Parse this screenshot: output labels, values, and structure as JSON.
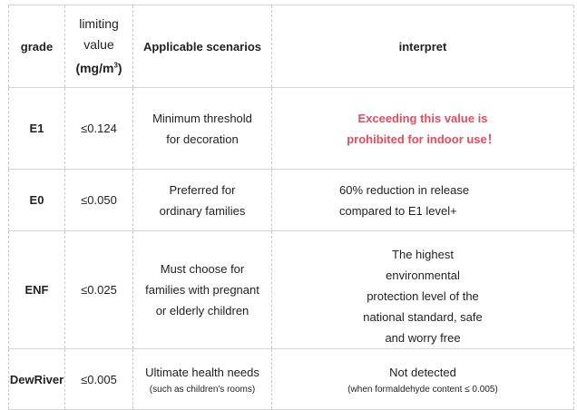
{
  "headers": {
    "grade": "grade",
    "limit_line1": "limiting",
    "limit_line2": "value",
    "limit_unit": "(mg/m",
    "limit_unit_sup": "3",
    "limit_unit_close": ")",
    "scenarios": "Applicable scenarios",
    "interpret": "interpret"
  },
  "rows": [
    {
      "grade": "E1",
      "limit": "≤0.124",
      "scenario": "Minimum threshold for decoration",
      "scenario_note": "",
      "interpret": "Exceeding this value is prohibited for indoor use！",
      "interpret_note": "",
      "interpret_color": "#e8495f"
    },
    {
      "grade": "E0",
      "limit": "≤0.050",
      "scenario": "Preferred for ordinary families",
      "scenario_note": "",
      "interpret": "60% reduction in release compared to E1 level+",
      "interpret_note": ""
    },
    {
      "grade": "ENF",
      "limit": "≤0.025",
      "scenario": "Must choose for families with pregnant or elderly children",
      "scenario_note": "",
      "interpret": "The highest environmental protection level of the national standard, safe and worry free",
      "interpret_note": ""
    },
    {
      "grade": "DewRiver",
      "limit": "≤0.005",
      "scenario": "Ultimate health needs",
      "scenario_note": "(such as children's rooms)",
      "interpret": "Not detected",
      "interpret_note": "(when formaldehyde content ≤ 0.005)"
    }
  ]
}
